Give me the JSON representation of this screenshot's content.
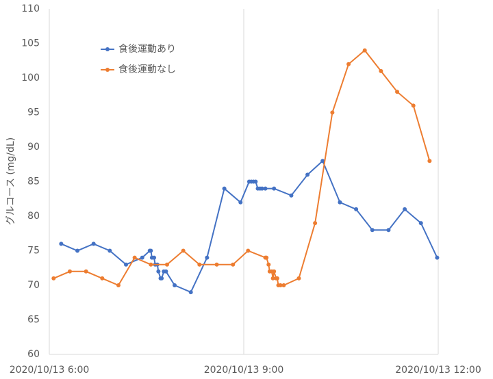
{
  "chart_data": {
    "type": "line",
    "y_label": "グルコース (mg/dL)",
    "xlim": [
      "2020/10/13 6:00",
      "2020/10/13 12:00"
    ],
    "xticks": [
      "2020/10/13 6:00",
      "2020/10/13 9:00",
      "2020/10/13 12:00"
    ],
    "ylim": [
      60,
      110
    ],
    "yticks": [
      60,
      65,
      70,
      75,
      80,
      85,
      90,
      95,
      100,
      105,
      110
    ],
    "grid": "x",
    "legend": "upper left",
    "series": [
      {
        "name": "食後運動あり",
        "color": "#4472c4",
        "x": [
          "2020/10/13 6:11",
          "2020/10/13 6:26",
          "2020/10/13 6:41",
          "2020/10/13 6:56",
          "2020/10/13 7:11",
          "2020/10/13 7:26",
          "2020/10/13 7:33",
          "2020/10/13 7:34",
          "2020/10/13 7:35",
          "2020/10/13 7:37",
          "2020/10/13 7:38",
          "2020/10/13 7:40",
          "2020/10/13 7:41",
          "2020/10/13 7:43",
          "2020/10/13 7:44",
          "2020/10/13 7:46",
          "2020/10/13 7:48",
          "2020/10/13 7:56",
          "2020/10/13 8:11",
          "2020/10/13 8:26",
          "2020/10/13 8:42",
          "2020/10/13 8:57",
          "2020/10/13 9:05",
          "2020/10/13 9:07",
          "2020/10/13 9:09",
          "2020/10/13 9:11",
          "2020/10/13 9:13",
          "2020/10/13 9:15",
          "2020/10/13 9:17",
          "2020/10/13 9:20",
          "2020/10/13 9:28",
          "2020/10/13 9:44",
          "2020/10/13 9:59",
          "2020/10/13 10:13",
          "2020/10/13 10:29",
          "2020/10/13 10:44",
          "2020/10/13 10:59",
          "2020/10/13 11:14",
          "2020/10/13 11:29",
          "2020/10/13 11:44",
          "2020/10/13 11:59"
        ],
        "values": [
          76,
          75,
          76,
          75,
          73,
          74,
          75,
          75,
          74,
          74,
          73,
          73,
          72,
          71,
          71,
          72,
          72,
          70,
          69,
          74,
          84,
          82,
          85,
          85,
          85,
          85,
          84,
          84,
          84,
          84,
          84,
          83,
          86,
          88,
          82,
          81,
          78,
          78,
          81,
          79,
          74
        ]
      },
      {
        "name": "食後運動なし",
        "color": "#ed7d31",
        "x": [
          "2020/10/13 6:04",
          "2020/10/13 6:19",
          "2020/10/13 6:34",
          "2020/10/13 6:49",
          "2020/10/13 7:04",
          "2020/10/13 7:19",
          "2020/10/13 7:34",
          "2020/10/13 7:49",
          "2020/10/13 8:04",
          "2020/10/13 8:19",
          "2020/10/13 8:35",
          "2020/10/13 8:50",
          "2020/10/13 9:04",
          "2020/10/13 9:20",
          "2020/10/13 9:21",
          "2020/10/13 9:23",
          "2020/10/13 9:24",
          "2020/10/13 9:26",
          "2020/10/13 9:27",
          "2020/10/13 9:28",
          "2020/10/13 9:30",
          "2020/10/13 9:31",
          "2020/10/13 9:32",
          "2020/10/13 9:34",
          "2020/10/13 9:37",
          "2020/10/13 9:51",
          "2020/10/13 10:06",
          "2020/10/13 10:22",
          "2020/10/13 10:37",
          "2020/10/13 10:52",
          "2020/10/13 11:07",
          "2020/10/13 11:22",
          "2020/10/13 11:37",
          "2020/10/13 11:52"
        ],
        "values": [
          71,
          72,
          72,
          71,
          70,
          74,
          73,
          73,
          75,
          73,
          73,
          73,
          75,
          74,
          74,
          73,
          72,
          72,
          71,
          72,
          71,
          71,
          70,
          70,
          70,
          71,
          79,
          95,
          102,
          104,
          101,
          98,
          96,
          88
        ]
      }
    ]
  }
}
